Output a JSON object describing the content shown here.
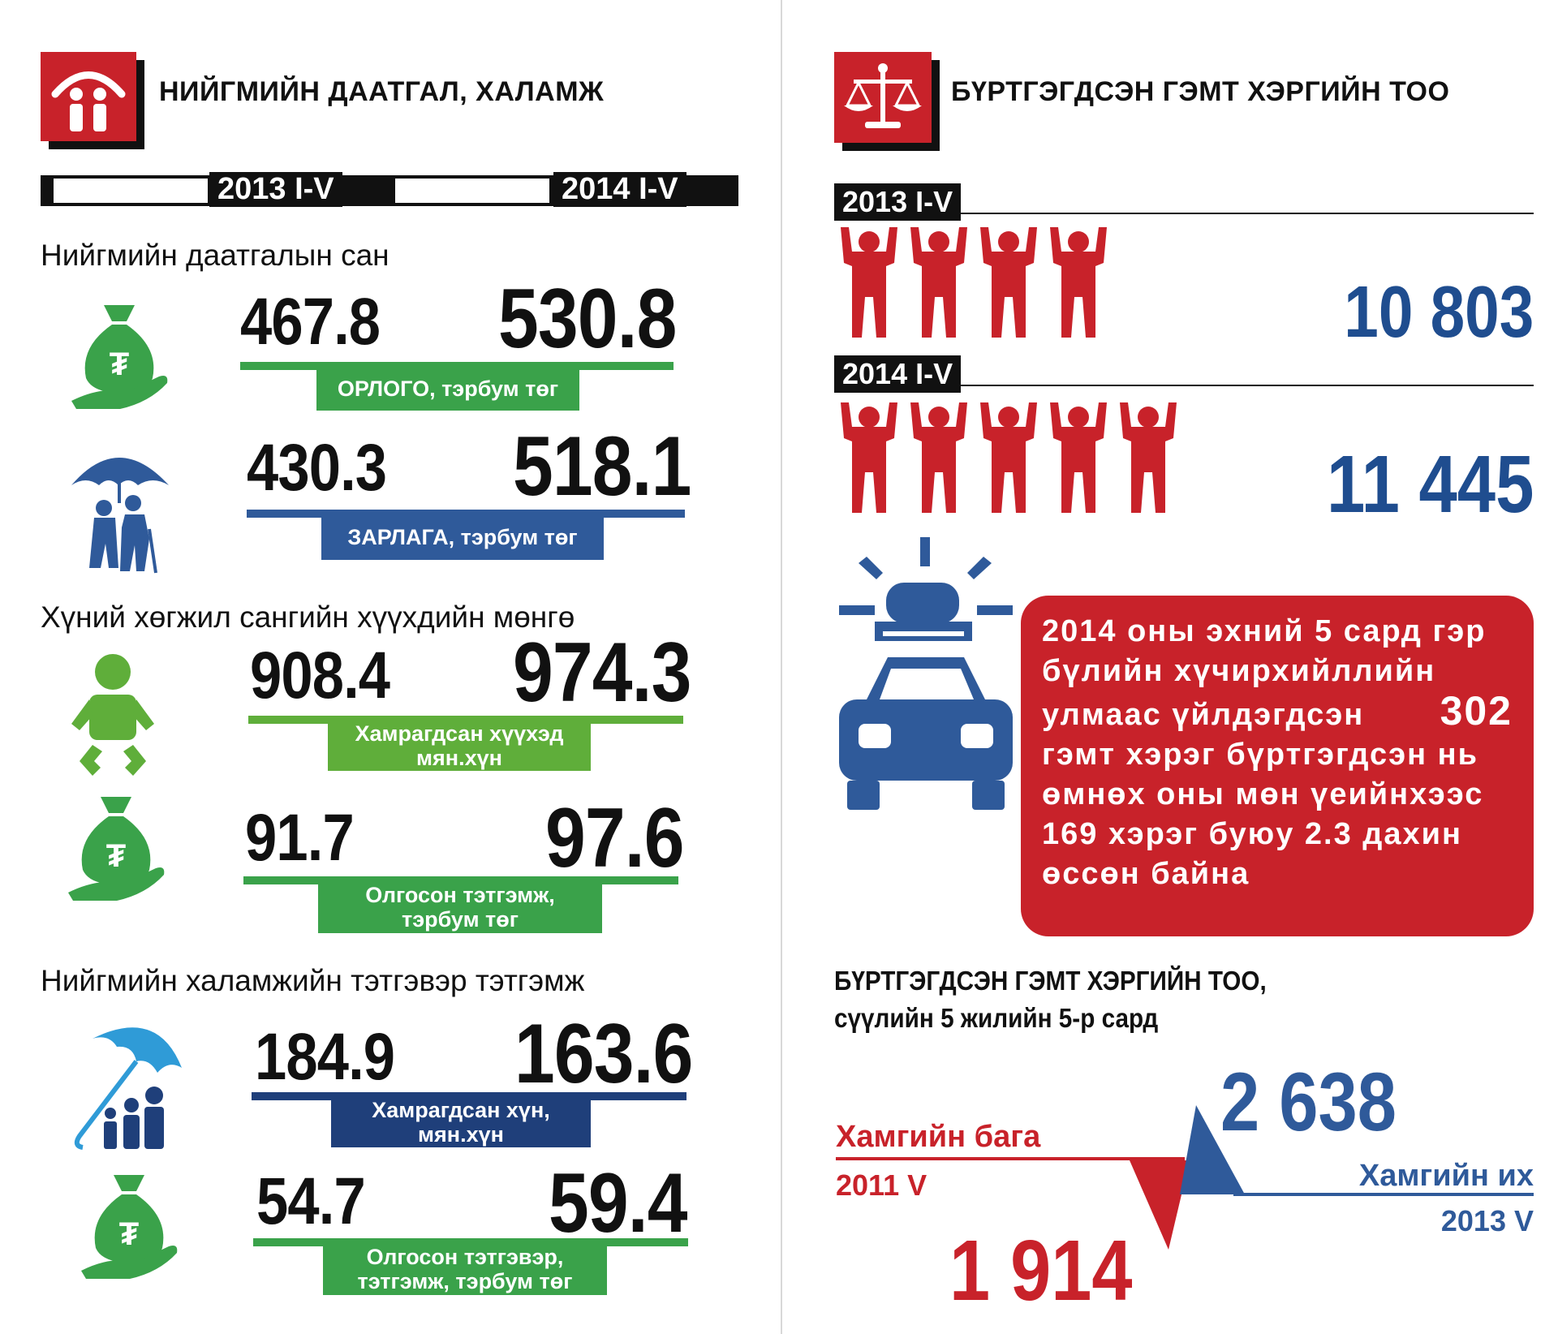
{
  "left": {
    "title": "НИЙГМИЙН ДААТГАЛ, ХАЛАМЖ",
    "icon": "family-shelter-icon",
    "year_a": "2013 I-V",
    "year_b": "2014 I-V",
    "sections": [
      {
        "heading": "Нийгмийн даатгалын сан",
        "rows": [
          {
            "icon": "money-bag-hand-icon",
            "v2013": "467.8",
            "v2014": "530.8",
            "label_lines": [
              "ОРЛОГО, тэрбум төг"
            ],
            "color": "#3aa24a"
          },
          {
            "icon": "elderly-umbrella-icon",
            "v2013": "430.3",
            "v2014": "518.1",
            "label_lines": [
              "ЗАРЛАГА, тэрбум төг"
            ],
            "color": "#2f5a9a"
          }
        ]
      },
      {
        "heading": "Хүний хөгжил сангийн хүүхдийн мөнгө",
        "rows": [
          {
            "icon": "child-icon",
            "v2013": "908.4",
            "v2014": "974.3",
            "label_lines": [
              "Хамрагдсан хүүхэд",
              "мян.хүн"
            ],
            "color": "#5fae3a"
          },
          {
            "icon": "money-bag-hand-icon",
            "v2013": "91.7",
            "v2014": "97.6",
            "label_lines": [
              "Олгосон тэтгэмж,",
              "тэрбум төг"
            ],
            "color": "#3aa24a"
          }
        ]
      },
      {
        "heading": "Нийгмийн халамжийн тэтгэвэр  тэтгэмж",
        "rows": [
          {
            "icon": "family-umbrella-icon",
            "v2013": "184.9",
            "v2014": "163.6",
            "label_lines": [
              "Хамрагдсан хүн,",
              "мян.хүн"
            ],
            "color": "#1f3f7a"
          },
          {
            "icon": "money-bag-hand-icon",
            "v2013": "54.7",
            "v2014": "59.4",
            "label_lines": [
              "Олгосон тэтгэвэр,",
              "тэтгэмж, тэрбум төг"
            ],
            "color": "#3aa24a"
          }
        ]
      }
    ]
  },
  "right": {
    "title": "БҮРТГЭГДСЭН ГЭМТ ХЭРГИЙН ТОО",
    "icon": "scales-of-justice-icon",
    "rows": [
      {
        "year": "2013 I-V",
        "figures": 4,
        "value": "10 803"
      },
      {
        "year": "2014 I-V",
        "figures": 5,
        "value": "11 445"
      }
    ],
    "police_icon": "police-car-icon",
    "note": {
      "lines": [
        "2014 оны эхний 5 сард гэр",
        "бүлийн хүчирхийллийн",
        "улмаас үйлдэгдсэн",
        "гэмт хэрэг бүртгэгдсэн нь",
        "өмнөх оны мөн үеийнхээс",
        "169 хэрэг буюу 2.3 дахин",
        "өссөн байна"
      ],
      "highlight": "302"
    },
    "bottom": {
      "title_line1": "БҮРТГЭГДСЭН ГЭМТ ХЭРГИЙН ТОО,",
      "title_line2": "сүүлийн 5 жилийн 5-р сард",
      "min_label": "Хамгийн бага",
      "min_period": "2011 V",
      "min_value": "1 914",
      "max_label": "Хамгийн их",
      "max_period": "2013 V",
      "max_value": "2 638"
    },
    "colors": {
      "red": "#c8222a",
      "blue": "#2f5a9a",
      "dark_blue": "#1f4d8f",
      "green": "#3aa24a"
    }
  }
}
